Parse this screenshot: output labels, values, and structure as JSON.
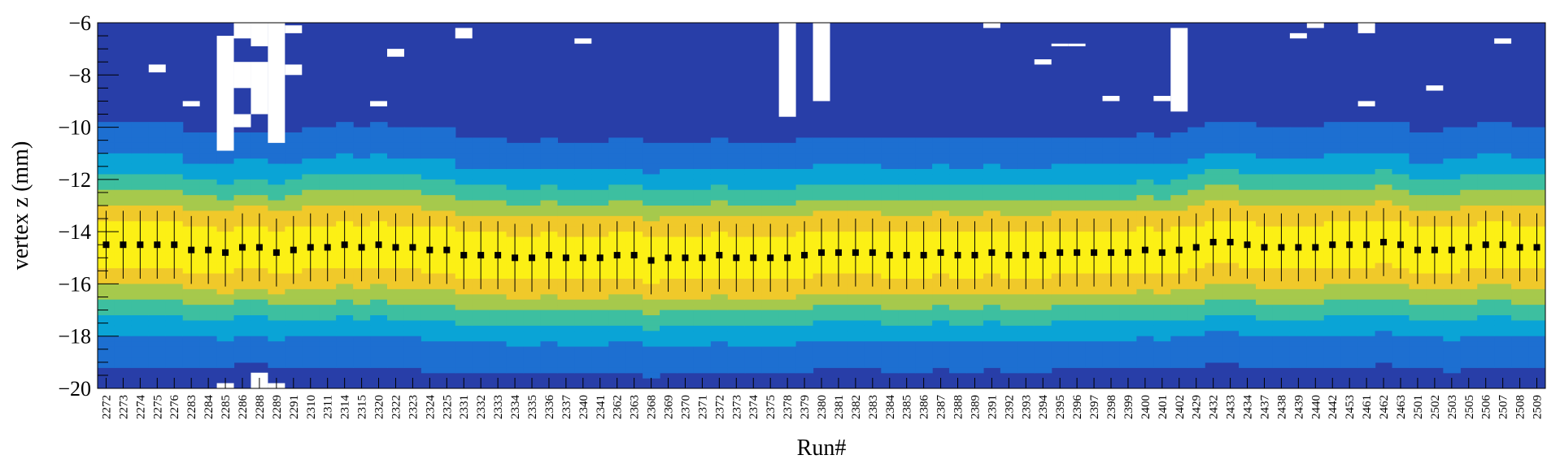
{
  "chart_data": {
    "type": "heatmap",
    "title": "",
    "xlabel": "Run#",
    "ylabel": "vertex z (mm)",
    "ylim": [
      -20,
      -6
    ],
    "yticks": [
      -20,
      -18,
      -16,
      -14,
      -12,
      -10,
      -8,
      -6
    ],
    "ytick_labels": [
      "−20",
      "−18",
      "−16",
      "−14",
      "−12",
      "−10",
      "−8",
      "−6"
    ],
    "categories": [
      "2272",
      "2273",
      "2274",
      "2275",
      "2276",
      "2283",
      "2284",
      "2285",
      "2286",
      "2288",
      "2289",
      "2291",
      "2310",
      "2311",
      "2314",
      "2315",
      "2320",
      "2322",
      "2323",
      "2324",
      "2325",
      "2331",
      "2332",
      "2333",
      "2334",
      "2335",
      "2336",
      "2337",
      "2340",
      "2341",
      "2362",
      "2363",
      "2368",
      "2369",
      "2370",
      "2371",
      "2372",
      "2373",
      "2374",
      "2375",
      "2378",
      "2379",
      "2380",
      "2381",
      "2382",
      "2383",
      "2384",
      "2385",
      "2386",
      "2387",
      "2388",
      "2389",
      "2391",
      "2392",
      "2393",
      "2394",
      "2395",
      "2396",
      "2397",
      "2398",
      "2399",
      "2400",
      "2401",
      "2402",
      "2429",
      "2432",
      "2433",
      "2434",
      "2437",
      "2438",
      "2439",
      "2440",
      "2442",
      "2453",
      "2461",
      "2462",
      "2463",
      "2501",
      "2502",
      "2503",
      "2505",
      "2506",
      "2507",
      "2508",
      "2509"
    ],
    "series": [
      {
        "values": [
          -14.5,
          -14.5,
          -14.5,
          -14.5,
          -14.5,
          -14.7,
          -14.7,
          -14.8,
          -14.6,
          -14.6,
          -14.8,
          -14.7,
          -14.6,
          -14.6,
          -14.5,
          -14.6,
          -14.5,
          -14.6,
          -14.6,
          -14.7,
          -14.7,
          -14.9,
          -14.9,
          -14.9,
          -15.0,
          -15.0,
          -14.9,
          -15.0,
          -15.0,
          -15.0,
          -14.9,
          -14.9,
          -15.1,
          -15.0,
          -15.0,
          -15.0,
          -14.9,
          -15.0,
          -15.0,
          -15.0,
          -15.0,
          -14.9,
          -14.8,
          -14.8,
          -14.8,
          -14.8,
          -14.9,
          -14.9,
          -14.9,
          -14.8,
          -14.9,
          -14.9,
          -14.8,
          -14.9,
          -14.9,
          -14.9,
          -14.8,
          -14.8,
          -14.8,
          -14.8,
          -14.8,
          -14.7,
          -14.8,
          -14.7,
          -14.6,
          -14.4,
          -14.4,
          -14.5,
          -14.6,
          -14.6,
          -14.6,
          -14.6,
          -14.5,
          -14.5,
          -14.5,
          -14.4,
          -14.5,
          -14.7,
          -14.7,
          -14.7,
          -14.6,
          -14.5,
          -14.5,
          -14.6,
          -14.6
        ],
        "errors": [
          1.3,
          1.3,
          1.3,
          1.3,
          1.3,
          1.3,
          1.3,
          1.3,
          1.3,
          1.3,
          1.3,
          1.3,
          1.3,
          1.3,
          1.3,
          1.3,
          1.3,
          1.3,
          1.3,
          1.3,
          1.3,
          1.3,
          1.3,
          1.3,
          1.3,
          1.3,
          1.3,
          1.3,
          1.3,
          1.3,
          1.3,
          1.3,
          1.3,
          1.3,
          1.3,
          1.3,
          1.3,
          1.3,
          1.3,
          1.3,
          1.3,
          1.3,
          1.3,
          1.3,
          1.3,
          1.3,
          1.3,
          1.3,
          1.3,
          1.3,
          1.3,
          1.3,
          1.3,
          1.3,
          1.3,
          1.3,
          1.3,
          1.3,
          1.3,
          1.3,
          1.3,
          1.3,
          1.3,
          1.3,
          1.3,
          1.3,
          1.3,
          1.3,
          1.3,
          1.3,
          1.3,
          1.3,
          1.3,
          1.3,
          1.3,
          1.3,
          1.3,
          1.3,
          1.3,
          1.3,
          1.3,
          1.3,
          1.3,
          1.3,
          1.3
        ]
      }
    ],
    "band_width": [
      2.1,
      2.1,
      2.1,
      2.1,
      2.1,
      2.0,
      2.0,
      2.0,
      2.0,
      2.0,
      2.0,
      2.0,
      2.1,
      2.1,
      2.1,
      2.1,
      2.1,
      2.1,
      2.1,
      2.1,
      2.1,
      2.0,
      2.0,
      2.0,
      2.0,
      2.0,
      2.0,
      2.0,
      2.0,
      2.0,
      2.0,
      2.0,
      2.0,
      2.0,
      2.0,
      2.0,
      2.0,
      2.0,
      2.0,
      2.0,
      2.0,
      2.0,
      2.0,
      2.0,
      2.0,
      2.0,
      2.0,
      2.0,
      2.0,
      2.0,
      2.0,
      2.0,
      2.0,
      2.0,
      2.0,
      2.0,
      2.0,
      2.0,
      2.0,
      2.0,
      2.0,
      2.0,
      2.0,
      2.0,
      2.1,
      2.1,
      2.1,
      2.1,
      2.1,
      2.1,
      2.1,
      2.1,
      2.1,
      2.1,
      2.1,
      2.1,
      2.1,
      2.0,
      2.0,
      2.1,
      2.1,
      2.1,
      2.1,
      2.1,
      2.1
    ],
    "empty_bins": [
      {
        "run": "2285",
        "z": [
          -6.5,
          -10.9
        ]
      },
      {
        "run": "2286",
        "z": [
          -6.0,
          -6.6
        ]
      },
      {
        "run": "2286",
        "z": [
          -7.5,
          -8.5
        ]
      },
      {
        "run": "2286",
        "z": [
          -9.5,
          -10.0
        ]
      },
      {
        "run": "2288",
        "z": [
          -6.0,
          -6.9
        ]
      },
      {
        "run": "2288",
        "z": [
          -7.5,
          -9.5
        ]
      },
      {
        "run": "2289",
        "z": [
          -6.0,
          -10.6
        ]
      },
      {
        "run": "2291",
        "z": [
          -6.1,
          -6.4
        ]
      },
      {
        "run": "2291",
        "z": [
          -7.6,
          -8.0
        ]
      },
      {
        "run": "2275",
        "z": [
          -7.6,
          -7.9
        ]
      },
      {
        "run": "2283",
        "z": [
          -9.0,
          -9.2
        ]
      },
      {
        "run": "2320",
        "z": [
          -9.0,
          -9.2
        ]
      },
      {
        "run": "2322",
        "z": [
          -7.0,
          -7.3
        ]
      },
      {
        "run": "2331",
        "z": [
          -6.2,
          -6.6
        ]
      },
      {
        "run": "2340",
        "z": [
          -6.6,
          -6.8
        ]
      },
      {
        "run": "2378",
        "z": [
          -6.0,
          -9.6
        ]
      },
      {
        "run": "2380",
        "z": [
          -6.0,
          -9.0
        ]
      },
      {
        "run": "2391",
        "z": [
          -6.0,
          -6.2
        ]
      },
      {
        "run": "2394",
        "z": [
          -7.4,
          -7.6
        ]
      },
      {
        "run": "2395",
        "z": [
          -6.8,
          -6.9
        ]
      },
      {
        "run": "2396",
        "z": [
          -6.8,
          -6.9
        ]
      },
      {
        "run": "2398",
        "z": [
          -8.8,
          -9.0
        ]
      },
      {
        "run": "2401",
        "z": [
          -8.8,
          -9.0
        ]
      },
      {
        "run": "2402",
        "z": [
          -6.2,
          -9.4
        ]
      },
      {
        "run": "2439",
        "z": [
          -6.4,
          -6.6
        ]
      },
      {
        "run": "2440",
        "z": [
          -6.0,
          -6.2
        ]
      },
      {
        "run": "2461",
        "z": [
          -6.0,
          -6.4
        ]
      },
      {
        "run": "2461",
        "z": [
          -9.0,
          -9.2
        ]
      },
      {
        "run": "2502",
        "z": [
          -8.4,
          -8.6
        ]
      },
      {
        "run": "2507",
        "z": [
          -6.6,
          -6.8
        ]
      },
      {
        "run": "2285",
        "z": [
          -19.8,
          -20.0
        ]
      },
      {
        "run": "2288",
        "z": [
          -19.4,
          -20.0
        ]
      },
      {
        "run": "2289",
        "z": [
          -19.8,
          -20.0
        ]
      }
    ],
    "grid": false,
    "legend": "none",
    "colors": {
      "background_bin": "#283ea8",
      "colormap": [
        "#283ea8",
        "#1d6fd1",
        "#0aa4d6",
        "#3dbfa0",
        "#a6c94c",
        "#f0c92a",
        "#fcf015"
      ],
      "marker": "#000000"
    }
  }
}
